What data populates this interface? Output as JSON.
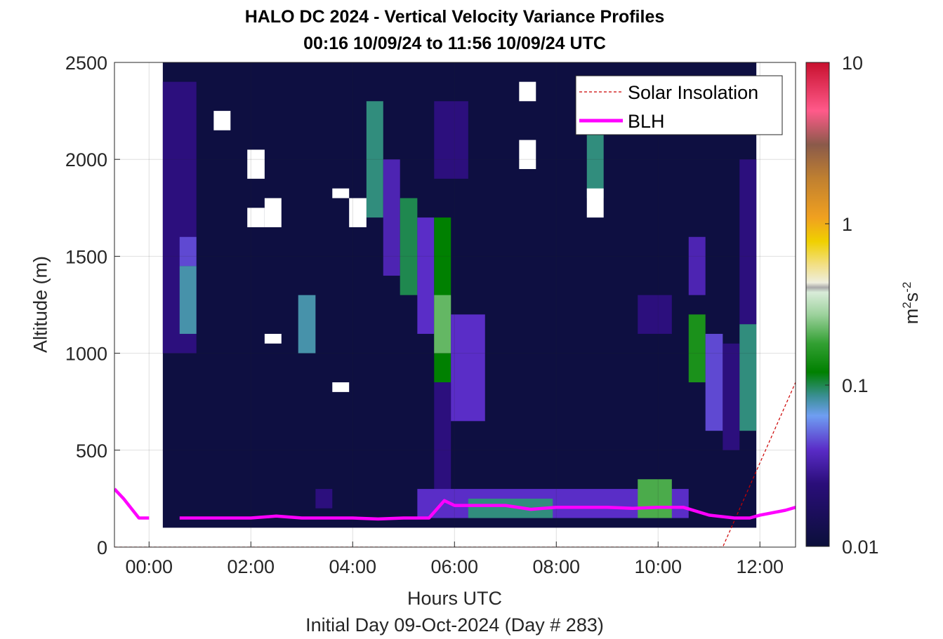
{
  "figure": {
    "title_line1": "HALO DC 2024 - Vertical Velocity Variance Profiles",
    "title_line2": "00:16 10/09/24 to 11:56 10/09/24  UTC",
    "xlabel": "Hours UTC",
    "xlabel2": "Initial Day 09-Oct-2024 (Day # 283)",
    "ylabel": "Altitude (m)",
    "colorbar_label_base": "m",
    "colorbar_label_sup1": "2",
    "colorbar_label_mid": "s",
    "colorbar_label_sup2": "-2"
  },
  "chart_data": {
    "type": "heatmap",
    "x_unit": "hours UTC",
    "xlim": [
      -0.68,
      12.7
    ],
    "ylim": [
      0,
      2500
    ],
    "x_ticks": [
      0,
      2,
      4,
      6,
      8,
      10,
      12
    ],
    "x_tick_labels": [
      "00:00",
      "02:00",
      "04:00",
      "06:00",
      "08:00",
      "10:00",
      "12:00"
    ],
    "y_ticks": [
      0,
      500,
      1000,
      1500,
      2000,
      2500
    ],
    "y_tick_labels": [
      "0",
      "500",
      "1000",
      "1500",
      "2000",
      "2500"
    ],
    "grid": true,
    "colorbar": {
      "scale": "log",
      "range": [
        0.01,
        10
      ],
      "tick_values": [
        0.01,
        0.1,
        1,
        10
      ],
      "tick_labels": [
        "0.01",
        "0.1",
        "1",
        "10"
      ]
    },
    "heatmap_extent": {
      "x_start": 0.27,
      "x_end": 11.93,
      "column_width_hours": 0.333,
      "y_start": 100,
      "y_end": 2500,
      "gate_height_m": 50
    },
    "background_variance": 0.011,
    "variance_patches": [
      {
        "x_start": 0.27,
        "x_end": 0.93,
        "y_start": 1000,
        "y_end": 2400,
        "variance": 0.025
      },
      {
        "x_start": 0.6,
        "x_end": 0.93,
        "y_start": 1100,
        "y_end": 1450,
        "variance": 0.08
      },
      {
        "x_start": 0.6,
        "x_end": 0.93,
        "y_start": 1450,
        "y_end": 1600,
        "variance": 0.045
      },
      {
        "x_start": 2.93,
        "x_end": 3.27,
        "y_start": 1000,
        "y_end": 1300,
        "variance": 0.08
      },
      {
        "x_start": 4.27,
        "x_end": 4.6,
        "y_start": 1700,
        "y_end": 2300,
        "variance": 0.09
      },
      {
        "x_start": 4.6,
        "x_end": 4.93,
        "y_start": 1400,
        "y_end": 2000,
        "variance": 0.035
      },
      {
        "x_start": 4.93,
        "x_end": 5.27,
        "y_start": 1300,
        "y_end": 1800,
        "variance": 0.1
      },
      {
        "x_start": 5.27,
        "x_end": 5.6,
        "y_start": 1100,
        "y_end": 1700,
        "variance": 0.04
      },
      {
        "x_start": 5.6,
        "x_end": 5.93,
        "y_start": 850,
        "y_end": 1700,
        "variance": 0.12
      },
      {
        "x_start": 5.6,
        "x_end": 5.93,
        "y_start": 1000,
        "y_end": 1300,
        "variance": 0.22
      },
      {
        "x_start": 5.6,
        "x_end": 5.93,
        "y_start": 300,
        "y_end": 850,
        "variance": 0.025
      },
      {
        "x_start": 5.93,
        "x_end": 6.6,
        "y_start": 650,
        "y_end": 1200,
        "variance": 0.04
      },
      {
        "x_start": 5.6,
        "x_end": 6.27,
        "y_start": 1900,
        "y_end": 2300,
        "variance": 0.025
      },
      {
        "x_start": 8.6,
        "x_end": 8.93,
        "y_start": 1800,
        "y_end": 2200,
        "variance": 0.09
      },
      {
        "x_start": 9.6,
        "x_end": 10.27,
        "y_start": 1100,
        "y_end": 1300,
        "variance": 0.025
      },
      {
        "x_start": 10.6,
        "x_end": 10.93,
        "y_start": 850,
        "y_end": 1200,
        "variance": 0.15
      },
      {
        "x_start": 10.6,
        "x_end": 10.93,
        "y_start": 1300,
        "y_end": 1600,
        "variance": 0.035
      },
      {
        "x_start": 10.93,
        "x_end": 11.27,
        "y_start": 600,
        "y_end": 1100,
        "variance": 0.045
      },
      {
        "x_start": 11.27,
        "x_end": 11.6,
        "y_start": 500,
        "y_end": 1050,
        "variance": 0.025
      },
      {
        "x_start": 11.6,
        "x_end": 11.93,
        "y_start": 600,
        "y_end": 1150,
        "variance": 0.09
      },
      {
        "x_start": 11.6,
        "x_end": 11.93,
        "y_start": 1150,
        "y_end": 2000,
        "variance": 0.025
      },
      {
        "x_start": 5.27,
        "x_end": 10.6,
        "y_start": 150,
        "y_end": 300,
        "variance": 0.04
      },
      {
        "x_start": 6.27,
        "x_end": 7.93,
        "y_start": 150,
        "y_end": 250,
        "variance": 0.09
      },
      {
        "x_start": 9.6,
        "x_end": 10.27,
        "y_start": 150,
        "y_end": 350,
        "variance": 0.2
      },
      {
        "x_start": 3.27,
        "x_end": 3.6,
        "y_start": 200,
        "y_end": 300,
        "variance": 0.025
      }
    ],
    "missing_cells": [
      {
        "x_start": 1.27,
        "x_end": 1.6,
        "y_start": 2150,
        "y_end": 2250
      },
      {
        "x_start": 1.93,
        "x_end": 2.27,
        "y_start": 1900,
        "y_end": 2050
      },
      {
        "x_start": 1.93,
        "x_end": 2.27,
        "y_start": 1650,
        "y_end": 1750
      },
      {
        "x_start": 2.27,
        "x_end": 2.6,
        "y_start": 1650,
        "y_end": 1800
      },
      {
        "x_start": 3.6,
        "x_end": 3.93,
        "y_start": 1800,
        "y_end": 1850
      },
      {
        "x_start": 3.93,
        "x_end": 4.27,
        "y_start": 1650,
        "y_end": 1800
      },
      {
        "x_start": 7.27,
        "x_end": 7.6,
        "y_start": 2300,
        "y_end": 2400
      },
      {
        "x_start": 7.27,
        "x_end": 7.6,
        "y_start": 1950,
        "y_end": 2100
      },
      {
        "x_start": 8.6,
        "x_end": 8.93,
        "y_start": 1700,
        "y_end": 1850
      },
      {
        "x_start": 2.27,
        "x_end": 2.6,
        "y_start": 1050,
        "y_end": 1100
      },
      {
        "x_start": 3.6,
        "x_end": 3.93,
        "y_start": 800,
        "y_end": 850
      }
    ],
    "series": [
      {
        "name": "Solar Insolation",
        "style": "dashed",
        "color": "#cc0000",
        "x": [
          -0.68,
          11.27,
          12.7
        ],
        "y": [
          0,
          0,
          850
        ]
      },
      {
        "name": "BLH",
        "style": "solid",
        "color": "#ff00ff",
        "x": [
          -0.68,
          -0.5,
          -0.2,
          0.0,
          0.4,
          0.6,
          1.0,
          1.5,
          2.0,
          2.5,
          3.0,
          3.5,
          4.0,
          4.5,
          5.0,
          5.5,
          5.8,
          6.0,
          6.5,
          7.0,
          7.5,
          8.0,
          8.5,
          9.0,
          9.5,
          10.0,
          10.5,
          11.0,
          11.5,
          11.8,
          12.0,
          12.5,
          12.7
        ],
        "y": [
          300,
          250,
          150,
          150,
          null,
          150,
          150,
          150,
          150,
          160,
          150,
          150,
          150,
          145,
          150,
          150,
          240,
          215,
          215,
          215,
          195,
          205,
          205,
          205,
          200,
          205,
          205,
          165,
          150,
          150,
          165,
          190,
          205
        ]
      }
    ],
    "legend": {
      "position": "top-right",
      "entries": [
        "Solar Insolation",
        "BLH"
      ]
    }
  }
}
